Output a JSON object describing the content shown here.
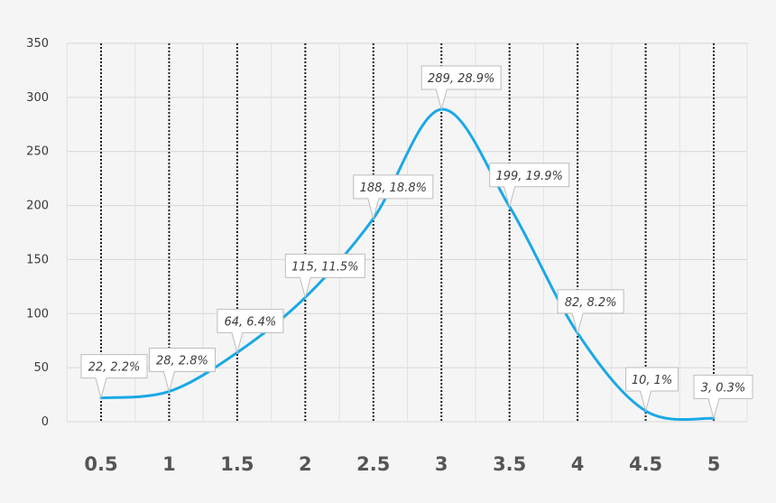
{
  "chart_data": {
    "type": "line",
    "title": "",
    "xlabel": "",
    "ylabel": "",
    "x": [
      0.5,
      1,
      1.5,
      2,
      2.5,
      3,
      3.5,
      4,
      4.5,
      5
    ],
    "x_tick_labels": [
      "0.5",
      "1",
      "1.5",
      "2",
      "2.5",
      "3",
      "3.5",
      "4",
      "4.5",
      "5"
    ],
    "series": [
      {
        "values": [
          22,
          28,
          64,
          115,
          188,
          289,
          199,
          82,
          10,
          3
        ]
      }
    ],
    "data_labels": [
      "22, 2.2%",
      "28, 2.8%",
      "64, 6.4%",
      "115, 11.5%",
      "188, 18.8%",
      "289, 28.9%",
      "199, 19.9%",
      "82, 8.2%",
      "10, 1%",
      "3, 0.3%"
    ],
    "ylim": [
      0,
      350
    ],
    "y_ticks": [
      0,
      50,
      100,
      150,
      200,
      250,
      300,
      350
    ],
    "grid": true,
    "legend": "none",
    "line_color": "#1aa8e6",
    "dotted_vertical_lines": true,
    "smooth": true
  }
}
